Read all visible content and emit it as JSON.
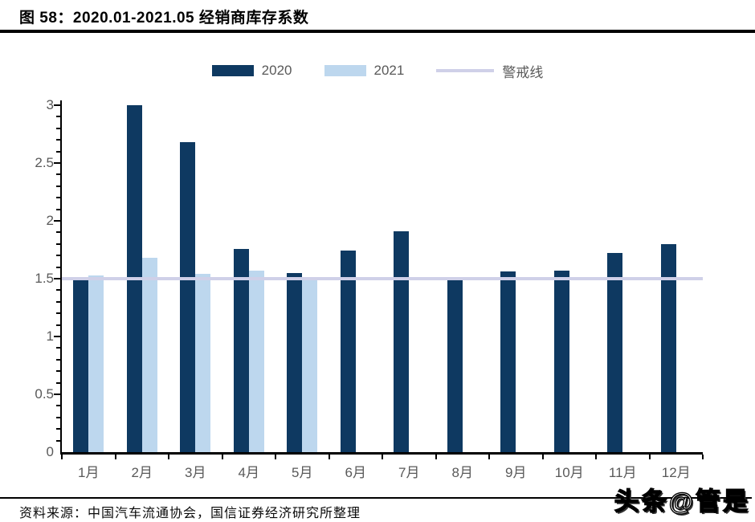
{
  "header": {
    "figure_label": "图 58",
    "title": "图 58：2020.01-2021.05 经销商库存系数"
  },
  "colors": {
    "series_2020": "#0e3961",
    "series_2021": "#bdd7ee",
    "warning_line": "#cfd0e8",
    "axis": "#000000",
    "axis_text": "#595959"
  },
  "chart_data": {
    "type": "bar",
    "title": "图 58：2020.01-2021.05 经销商库存系数",
    "categories": [
      "1月",
      "2月",
      "3月",
      "4月",
      "5月",
      "6月",
      "7月",
      "8月",
      "9月",
      "10月",
      "11月",
      "12月"
    ],
    "series": [
      {
        "name": "2020",
        "color": "#0e3961",
        "values": [
          1.5,
          3.0,
          2.68,
          1.76,
          1.55,
          1.74,
          1.91,
          1.49,
          1.56,
          1.57,
          1.72,
          1.8
        ]
      },
      {
        "name": "2021",
        "color": "#bdd7ee",
        "values": [
          1.53,
          1.68,
          1.54,
          1.57,
          1.5,
          null,
          null,
          null,
          null,
          null,
          null,
          null
        ]
      }
    ],
    "reference_line": {
      "name": "警戒线",
      "value": 1.5,
      "color": "#cfd0e8"
    },
    "xlabel": "",
    "ylabel": "",
    "ylim": [
      0,
      3
    ],
    "yticks": [
      0,
      0.5,
      1,
      1.5,
      2,
      2.5,
      3
    ],
    "minor_tick_step": 0.1,
    "grid": false,
    "legend_position": "top"
  },
  "footer": {
    "source": "资料来源：中国汽车流通协会，国信证券经济研究所整理",
    "watermark": "头条@管是"
  }
}
